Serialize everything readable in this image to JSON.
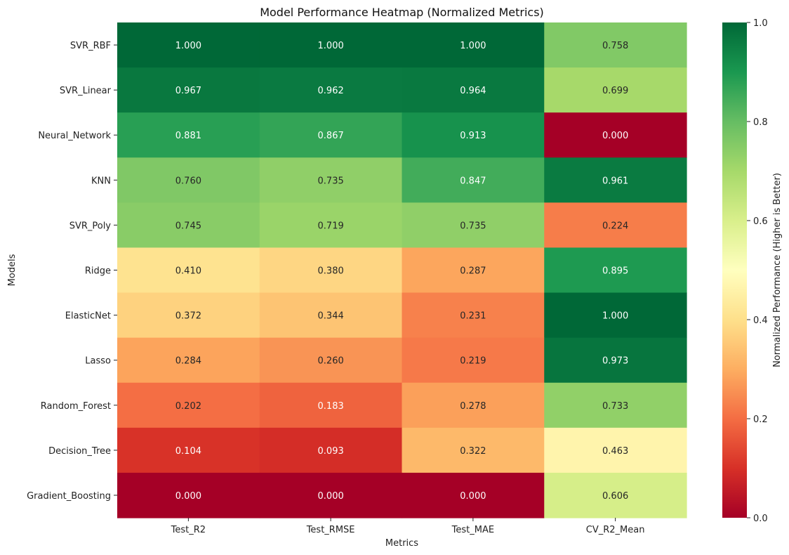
{
  "chart_data": {
    "type": "heatmap",
    "title": "Model Performance Heatmap (Normalized Metrics)",
    "xlabel": "Metrics",
    "ylabel": "Models",
    "x_categories": [
      "Test_R2",
      "Test_RMSE",
      "Test_MAE",
      "CV_R2_Mean"
    ],
    "y_categories": [
      "SVR_RBF",
      "SVR_Linear",
      "Neural_Network",
      "KNN",
      "SVR_Poly",
      "Ridge",
      "ElasticNet",
      "Lasso",
      "Random_Forest",
      "Decision_Tree",
      "Gradient_Boosting"
    ],
    "values": [
      [
        1.0,
        1.0,
        1.0,
        0.758
      ],
      [
        0.967,
        0.962,
        0.964,
        0.699
      ],
      [
        0.881,
        0.867,
        0.913,
        0.0
      ],
      [
        0.76,
        0.735,
        0.847,
        0.961
      ],
      [
        0.745,
        0.719,
        0.735,
        0.224
      ],
      [
        0.41,
        0.38,
        0.287,
        0.895
      ],
      [
        0.372,
        0.344,
        0.231,
        1.0
      ],
      [
        0.284,
        0.26,
        0.219,
        0.973
      ],
      [
        0.202,
        0.183,
        0.278,
        0.733
      ],
      [
        0.104,
        0.093,
        0.322,
        0.463
      ],
      [
        0.0,
        0.0,
        0.0,
        0.606
      ]
    ],
    "value_format": "0.000",
    "colormap": "RdYlGn",
    "vmin": 0.0,
    "vmax": 1.0,
    "colorbar": {
      "label": "Normalized Performance (Higher is Better)",
      "ticks": [
        "0.0",
        "0.2",
        "0.4",
        "0.6",
        "0.8",
        "1.0"
      ]
    }
  }
}
